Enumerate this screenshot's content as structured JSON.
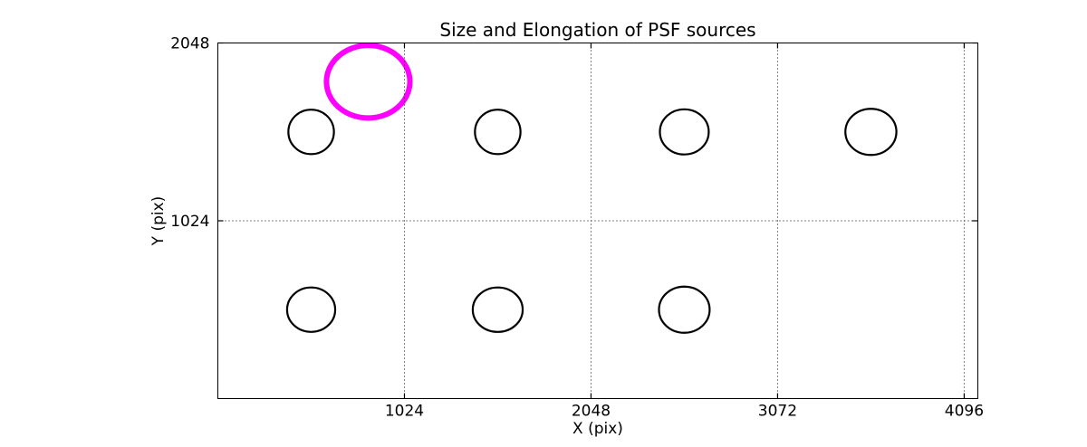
{
  "figure": {
    "background": "#ffffff"
  },
  "chart_data": {
    "type": "scatter",
    "title": "Size and Elongation of PSF sources",
    "xlabel": "X (pix)",
    "ylabel": "Y (pix)",
    "xlim": [
      0,
      4171
    ],
    "ylim": [
      0,
      2048
    ],
    "xticks": [
      1024,
      2048,
      3072,
      4096
    ],
    "yticks": [
      1024,
      2048
    ],
    "grid": {
      "on": true,
      "style": "dotted",
      "color": "#000000"
    },
    "axis_color": "#000000",
    "background": "#ffffff",
    "legend": null,
    "ellipses": [
      {
        "x": 512,
        "y": 1536,
        "rx": 125,
        "ry": 128,
        "color": "#000000",
        "lw": 2.2,
        "role": "psf-source"
      },
      {
        "x": 1536,
        "y": 1536,
        "rx": 125,
        "ry": 128,
        "color": "#000000",
        "lw": 2.2,
        "role": "psf-source"
      },
      {
        "x": 2560,
        "y": 1536,
        "rx": 134,
        "ry": 130,
        "color": "#000000",
        "lw": 2.2,
        "role": "psf-source"
      },
      {
        "x": 3584,
        "y": 1536,
        "rx": 140,
        "ry": 133,
        "color": "#000000",
        "lw": 2.2,
        "role": "psf-source"
      },
      {
        "x": 512,
        "y": 512,
        "rx": 132,
        "ry": 128,
        "color": "#000000",
        "lw": 2.2,
        "role": "psf-source"
      },
      {
        "x": 1536,
        "y": 512,
        "rx": 137,
        "ry": 128,
        "color": "#000000",
        "lw": 2.2,
        "role": "psf-source"
      },
      {
        "x": 2560,
        "y": 512,
        "rx": 139,
        "ry": 133,
        "color": "#000000",
        "lw": 2.2,
        "role": "psf-source"
      },
      {
        "x": 825,
        "y": 1825,
        "rx": 229,
        "ry": 209,
        "color": "#ff00ff",
        "lw": 6,
        "role": "highlighted-psf-source"
      }
    ]
  }
}
